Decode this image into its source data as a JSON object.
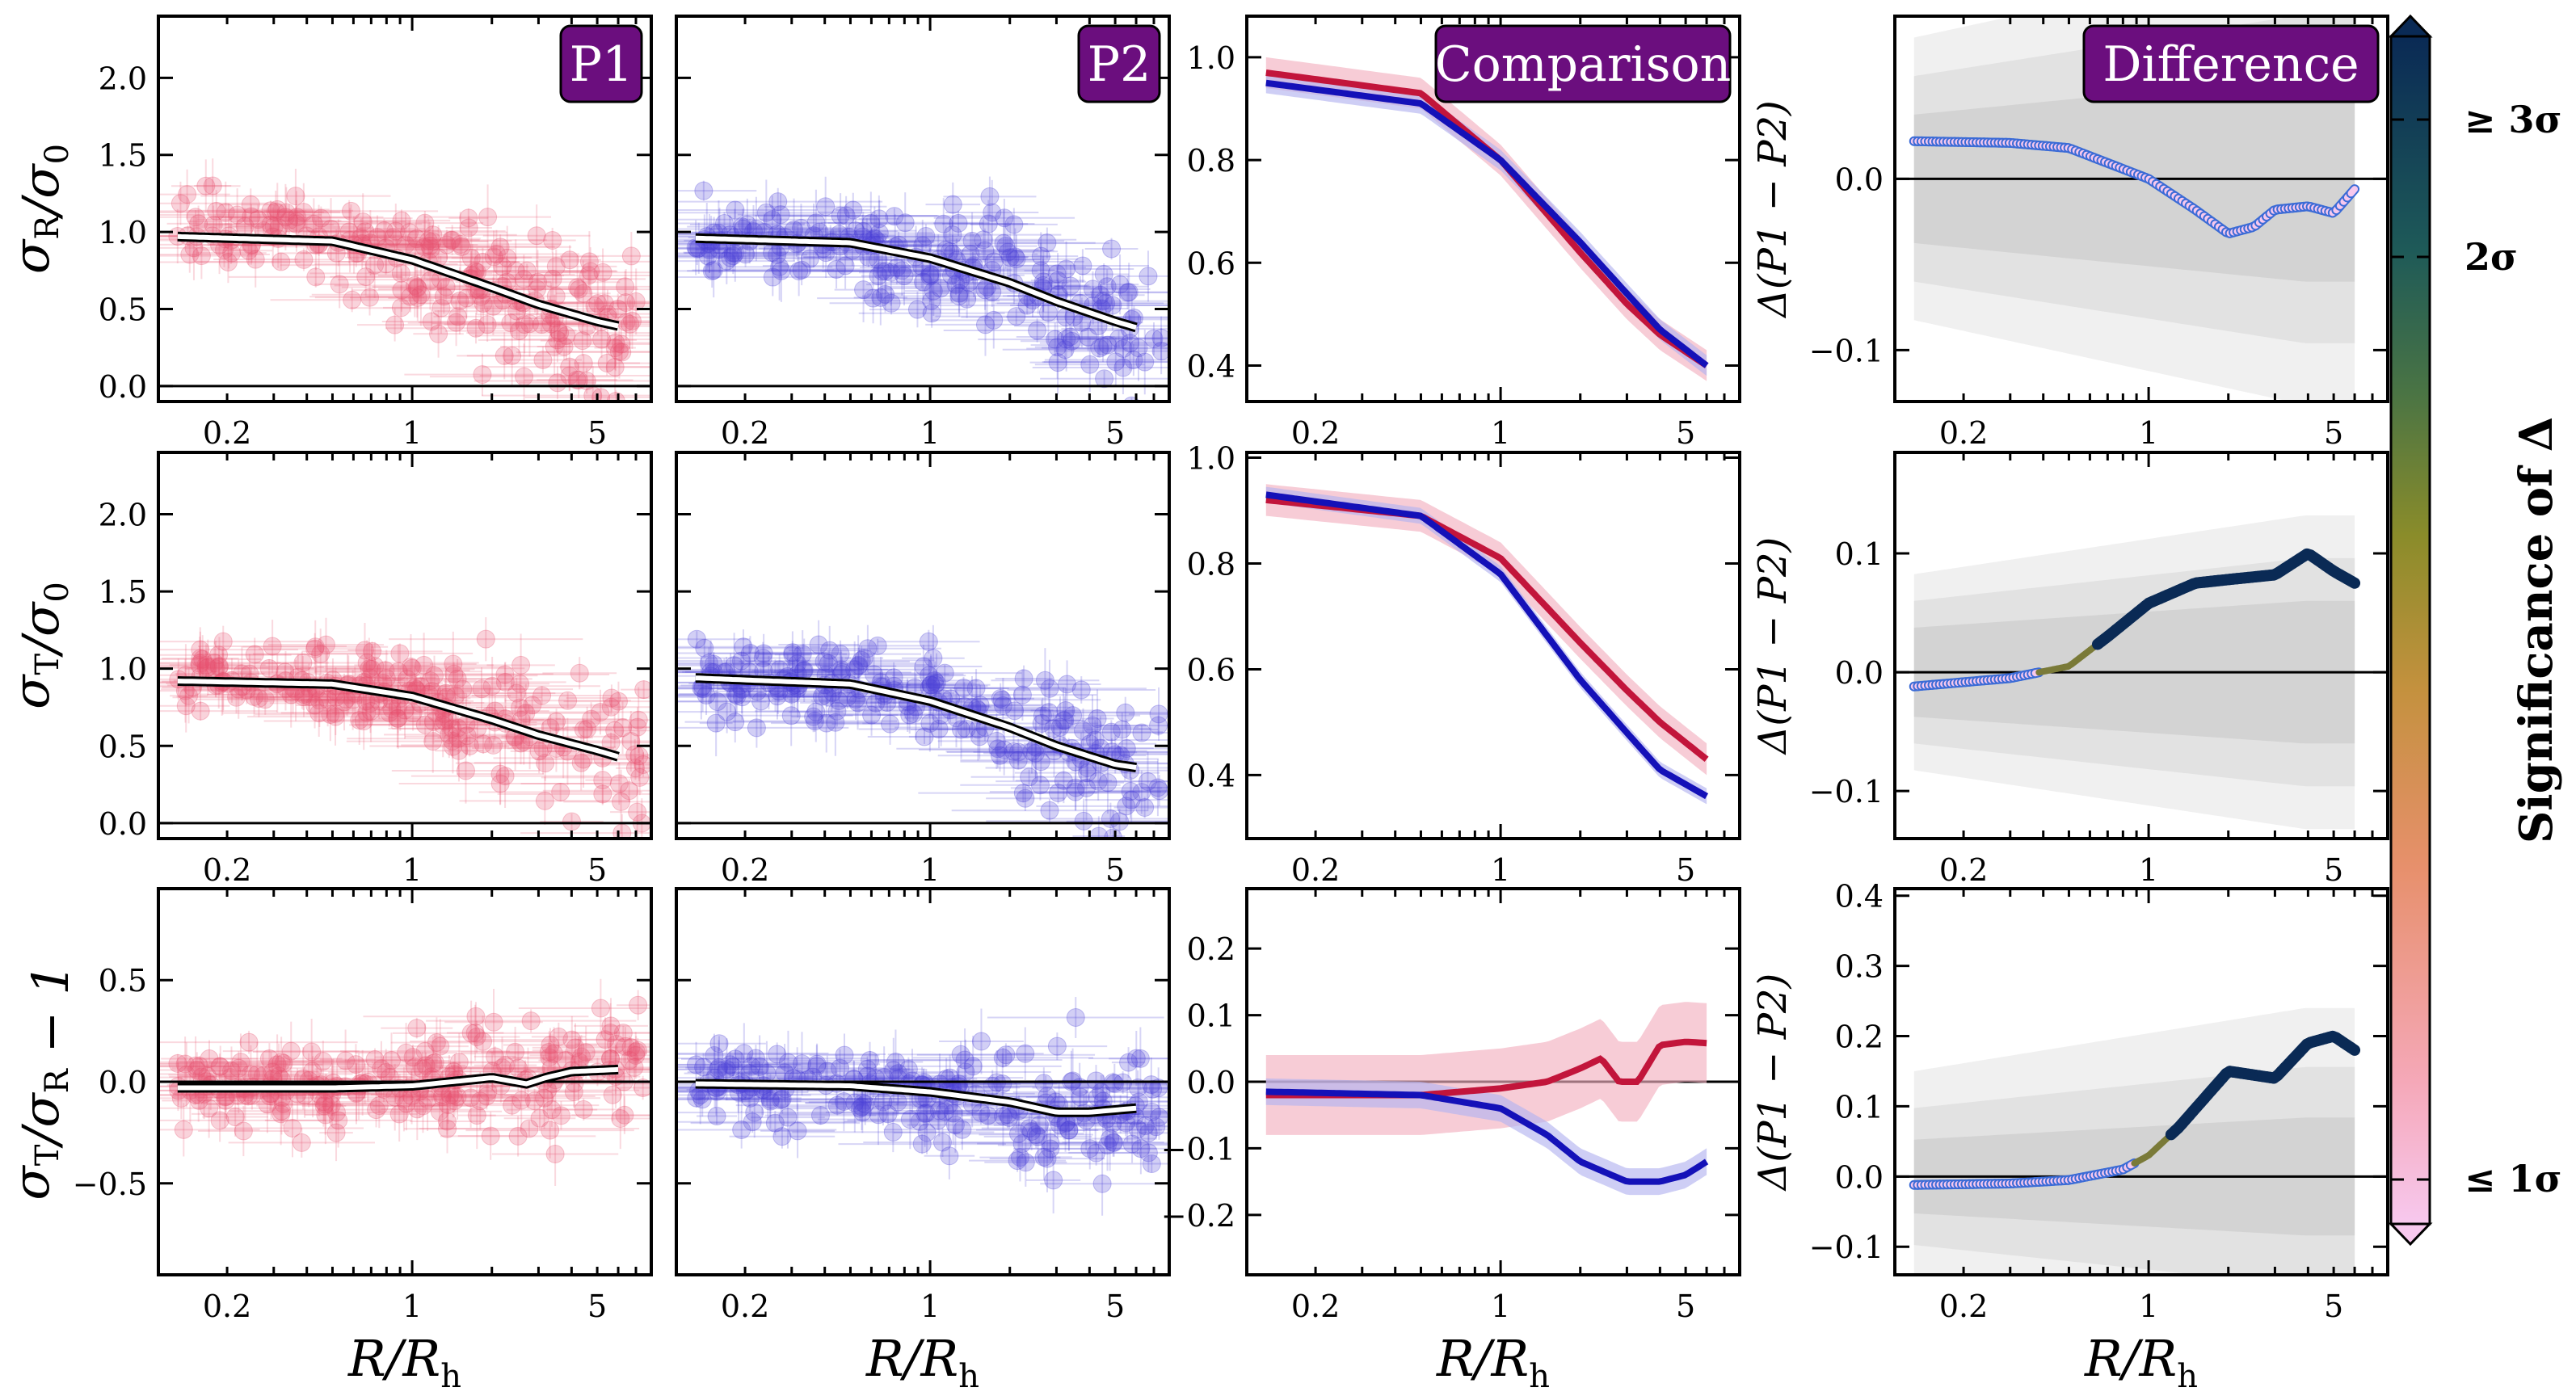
{
  "figure": {
    "colorbar_label": "Significance of Δ",
    "colorbar_ticks": [
      "≤ 1σ",
      "2σ",
      "≥ 3σ"
    ],
    "colors": {
      "p1": "#c2153b",
      "p2": "#1411b8",
      "p1_points": "#e8506e",
      "p2_points": "#4a3fd6",
      "badge": "#6b0e7e",
      "sig_low": "#f7c8ee",
      "sig_high": "#0a2a55"
    }
  },
  "chart_data": [
    {
      "panel": "r1c1",
      "type": "scatter",
      "badge": "P1",
      "series": "p1",
      "ylabel": "σR/σ0",
      "xlabel": "",
      "ylim": [
        -0.1,
        2.4
      ],
      "yticks": [
        0.0,
        0.5,
        1.0,
        1.5,
        2.0
      ],
      "xticks": [
        0.2,
        1,
        5
      ],
      "fit": {
        "x": [
          0.13,
          0.5,
          1,
          2,
          3,
          5,
          6
        ],
        "y": [
          0.97,
          0.94,
          0.82,
          0.64,
          0.53,
          0.42,
          0.39
        ]
      }
    },
    {
      "panel": "r1c2",
      "type": "scatter",
      "badge": "P2",
      "series": "p2",
      "ylabel": "",
      "xlabel": "",
      "ylim": [
        -0.1,
        2.4
      ],
      "yticks": [
        0.0,
        0.5,
        1.0,
        1.5,
        2.0
      ],
      "xticks": [
        0.2,
        1,
        5
      ],
      "fit": {
        "x": [
          0.13,
          0.5,
          1,
          2,
          3,
          5,
          6
        ],
        "y": [
          0.96,
          0.93,
          0.83,
          0.67,
          0.55,
          0.42,
          0.38
        ]
      }
    },
    {
      "panel": "r1c3",
      "type": "line",
      "badge": "Comparison",
      "ylabel": "",
      "xlabel": "",
      "ylim": [
        0.33,
        1.08
      ],
      "yticks": [
        0.4,
        0.6,
        0.8,
        1.0
      ],
      "xticks": [
        0.2,
        1,
        5
      ],
      "series": [
        {
          "name": "P1",
          "x": [
            0.13,
            0.5,
            1,
            2,
            3,
            4,
            6
          ],
          "y": [
            0.97,
            0.93,
            0.8,
            0.62,
            0.52,
            0.46,
            0.4
          ],
          "band": 0.03
        },
        {
          "name": "P2",
          "x": [
            0.13,
            0.5,
            1,
            2,
            3,
            4,
            6
          ],
          "y": [
            0.95,
            0.91,
            0.8,
            0.64,
            0.54,
            0.47,
            0.4
          ],
          "band": 0.02
        }
      ]
    },
    {
      "panel": "r1c4",
      "type": "line",
      "badge": "Difference",
      "ylabel": "Δ(P1 − P2)",
      "xlabel": "",
      "ylim": [
        -0.13,
        0.095
      ],
      "yticks": [
        -0.1,
        0.0
      ],
      "xticks": [
        0.2,
        1,
        5
      ],
      "delta": {
        "x": [
          0.13,
          0.3,
          0.5,
          1,
          1.5,
          2,
          2.5,
          3,
          4,
          5,
          6
        ],
        "y": [
          0.022,
          0.021,
          0.018,
          0.0,
          -0.018,
          -0.032,
          -0.028,
          -0.018,
          -0.016,
          -0.02,
          -0.006
        ],
        "sig": [
          0.2,
          0.2,
          0.2,
          0.2,
          0.2,
          0.2,
          0.2,
          0.2,
          0.2,
          0.2,
          0.2
        ],
        "band1": 0.05,
        "band2": 0.08,
        "band3": 0.11
      }
    },
    {
      "panel": "r2c1",
      "type": "scatter",
      "series": "p1",
      "ylabel": "σT/σ0",
      "xlabel": "",
      "ylim": [
        -0.1,
        2.4
      ],
      "yticks": [
        0.0,
        0.5,
        1.0,
        1.5,
        2.0
      ],
      "xticks": [
        0.2,
        1,
        5
      ],
      "fit": {
        "x": [
          0.13,
          0.5,
          1,
          2,
          3,
          5,
          6
        ],
        "y": [
          0.92,
          0.9,
          0.82,
          0.67,
          0.57,
          0.47,
          0.43
        ]
      }
    },
    {
      "panel": "r2c2",
      "type": "scatter",
      "series": "p2",
      "ylabel": "",
      "xlabel": "",
      "ylim": [
        -0.1,
        2.4
      ],
      "yticks": [
        0.0,
        0.5,
        1.0,
        1.5,
        2.0
      ],
      "xticks": [
        0.2,
        1,
        5
      ],
      "fit": {
        "x": [
          0.13,
          0.5,
          1,
          2,
          3,
          5,
          6
        ],
        "y": [
          0.94,
          0.9,
          0.79,
          0.62,
          0.5,
          0.38,
          0.36
        ]
      }
    },
    {
      "panel": "r2c3",
      "type": "line",
      "ylabel": "",
      "xlabel": "",
      "ylim": [
        0.28,
        1.01
      ],
      "yticks": [
        0.4,
        0.6,
        0.8,
        1.0
      ],
      "xticks": [
        0.2,
        1,
        5
      ],
      "series": [
        {
          "name": "P1",
          "x": [
            0.13,
            0.5,
            1,
            2,
            3,
            4,
            6
          ],
          "y": [
            0.92,
            0.89,
            0.81,
            0.65,
            0.56,
            0.5,
            0.43
          ],
          "band": 0.03
        },
        {
          "name": "P2",
          "x": [
            0.13,
            0.5,
            1,
            2,
            3,
            4,
            6
          ],
          "y": [
            0.93,
            0.89,
            0.78,
            0.58,
            0.48,
            0.41,
            0.36
          ],
          "band": 0.015
        }
      ]
    },
    {
      "panel": "r2c4",
      "type": "line",
      "ylabel": "Δ(P1 − P2)",
      "xlabel": "",
      "ylim": [
        -0.14,
        0.185
      ],
      "yticks": [
        -0.1,
        0.0,
        0.1
      ],
      "xticks": [
        0.2,
        1,
        5
      ],
      "delta": {
        "x": [
          0.13,
          0.3,
          0.5,
          0.7,
          1,
          1.5,
          2,
          3,
          4,
          5,
          6
        ],
        "y": [
          -0.012,
          -0.005,
          0.005,
          0.03,
          0.058,
          0.075,
          0.078,
          0.082,
          0.1,
          0.085,
          0.075
        ],
        "sig": [
          0.2,
          0.2,
          0.4,
          1.0,
          1.0,
          1.0,
          1.0,
          1.0,
          1.0,
          1.0,
          1.0
        ],
        "band1": 0.05,
        "band2": 0.08,
        "band3": 0.11
      }
    },
    {
      "panel": "r3c1",
      "type": "scatter",
      "series": "p1",
      "ylabel": "σT/σR − 1",
      "xlabel": "R/Rh",
      "ylim": [
        -0.95,
        0.95
      ],
      "yticks": [
        -0.5,
        0.0,
        0.5
      ],
      "xticks": [
        0.2,
        1,
        5
      ],
      "fit": {
        "x": [
          0.13,
          0.5,
          1,
          2,
          2.7,
          3.2,
          4,
          6
        ],
        "y": [
          -0.03,
          -0.03,
          -0.02,
          0.02,
          -0.01,
          0.02,
          0.05,
          0.06
        ]
      }
    },
    {
      "panel": "r3c2",
      "type": "scatter",
      "series": "p2",
      "ylabel": "",
      "xlabel": "R/Rh",
      "ylim": [
        -0.95,
        0.95
      ],
      "yticks": [
        -0.5,
        0.0,
        0.5
      ],
      "xticks": [
        0.2,
        1,
        5
      ],
      "fit": {
        "x": [
          0.13,
          0.5,
          1,
          2,
          3,
          4,
          6
        ],
        "y": [
          -0.01,
          -0.02,
          -0.05,
          -0.1,
          -0.15,
          -0.15,
          -0.13
        ]
      }
    },
    {
      "panel": "r3c3",
      "type": "line",
      "ylabel": "",
      "xlabel": "R/Rh",
      "ylim": [
        -0.29,
        0.29
      ],
      "yticks": [
        -0.2,
        -0.1,
        0.0,
        0.1,
        0.2
      ],
      "xticks": [
        0.2,
        1,
        5
      ],
      "series": [
        {
          "name": "P1",
          "x": [
            0.13,
            0.5,
            1,
            1.5,
            2,
            2.4,
            2.8,
            3.3,
            4,
            5,
            6
          ],
          "y": [
            -0.02,
            -0.02,
            -0.01,
            0.0,
            0.02,
            0.035,
            0.0,
            0.0,
            0.055,
            0.06,
            0.058
          ],
          "band": 0.06
        },
        {
          "name": "P2",
          "x": [
            0.13,
            0.5,
            1,
            1.5,
            2,
            3,
            4,
            5,
            6
          ],
          "y": [
            -0.015,
            -0.02,
            -0.04,
            -0.08,
            -0.12,
            -0.15,
            -0.15,
            -0.14,
            -0.12
          ],
          "band": 0.02
        }
      ]
    },
    {
      "panel": "r3c4",
      "type": "line",
      "ylabel": "Δ(P1 − P2)",
      "xlabel": "R/Rh",
      "ylim": [
        -0.14,
        0.41
      ],
      "yticks": [
        -0.1,
        0.0,
        0.1,
        0.2,
        0.3,
        0.4
      ],
      "xticks": [
        0.2,
        1,
        5
      ],
      "delta": {
        "x": [
          0.13,
          0.3,
          0.5,
          0.8,
          1,
          1.3,
          2,
          3,
          4,
          5,
          6
        ],
        "y": [
          -0.012,
          -0.01,
          -0.005,
          0.01,
          0.03,
          0.07,
          0.15,
          0.14,
          0.19,
          0.2,
          0.18
        ],
        "sig": [
          0.2,
          0.2,
          0.2,
          0.2,
          0.4,
          1.0,
          1.0,
          1.0,
          1.0,
          1.0,
          1.0
        ],
        "band1": 0.07,
        "band2": 0.13,
        "band3": 0.2
      }
    }
  ]
}
